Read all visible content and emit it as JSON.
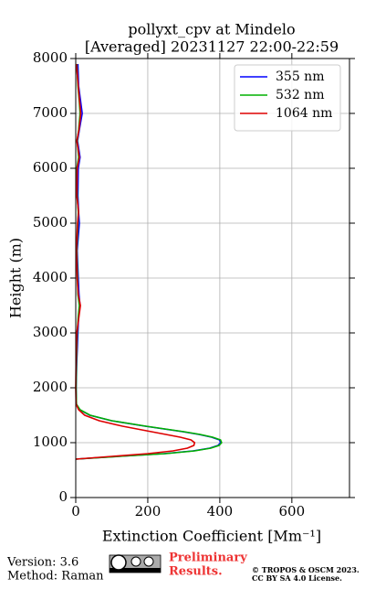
{
  "chart_data": {
    "type": "line",
    "title": "pollyxt_cpv at Mindelo",
    "subtitle": "[Averaged] 20231127 22:00-22:59",
    "x_label": "Extinction Coefficient [Mm⁻¹]",
    "y_label": "Height (m)",
    "y": [
      700,
      750,
      800,
      850,
      900,
      950,
      1000,
      1050,
      1100,
      1150,
      1200,
      1300,
      1400,
      1500,
      1600,
      1700,
      2000,
      2500,
      3000,
      3300,
      3500,
      3700,
      4000,
      4500,
      5000,
      5200,
      5500,
      6000,
      6200,
      6500,
      6700,
      7000,
      7200,
      7500,
      7900
    ],
    "series": [
      {
        "name": "355 nm",
        "color": "#0000ff",
        "values": [
          0,
          118,
          245,
          326,
          372,
          395,
          402,
          399,
          377,
          342,
          297,
          193,
          99,
          39,
          11,
          2,
          1,
          3,
          6,
          8,
          12,
          9,
          7,
          4,
          10,
          8,
          6,
          7,
          12,
          5,
          10,
          18,
          14,
          8,
          6
        ]
      },
      {
        "name": "532 nm",
        "color": "#00b000",
        "values": [
          0,
          120,
          250,
          330,
          375,
          398,
          405,
          402,
          380,
          345,
          300,
          195,
          100,
          40,
          12,
          2,
          1,
          2,
          4,
          7,
          10,
          6,
          5,
          3,
          6,
          7,
          4,
          3,
          8,
          4,
          8,
          12,
          10,
          6,
          3
        ]
      },
      {
        "name": "1064 nm",
        "color": "#dd0000",
        "values": [
          0,
          100,
          200,
          270,
          310,
          328,
          330,
          320,
          290,
          250,
          210,
          130,
          65,
          25,
          8,
          1,
          0,
          1,
          3,
          9,
          13,
          7,
          4,
          2,
          5,
          8,
          3,
          4,
          10,
          3,
          9,
          14,
          11,
          7,
          2
        ]
      }
    ],
    "xlim": [
      0,
      760
    ],
    "ylim": [
      0,
      8000
    ],
    "xticks": [
      0,
      200,
      400,
      600
    ],
    "yticks": [
      0,
      1000,
      2000,
      3000,
      4000,
      5000,
      6000,
      7000,
      8000
    ],
    "grid": true,
    "legend": "upper right"
  },
  "footer": {
    "version": "Version: 3.6",
    "method": "Method: Raman",
    "preliminary": [
      "Preliminary",
      "Results."
    ],
    "copyright": "© TROPOS & OSCM 2023.",
    "license": "CC BY SA 4.0 License."
  }
}
